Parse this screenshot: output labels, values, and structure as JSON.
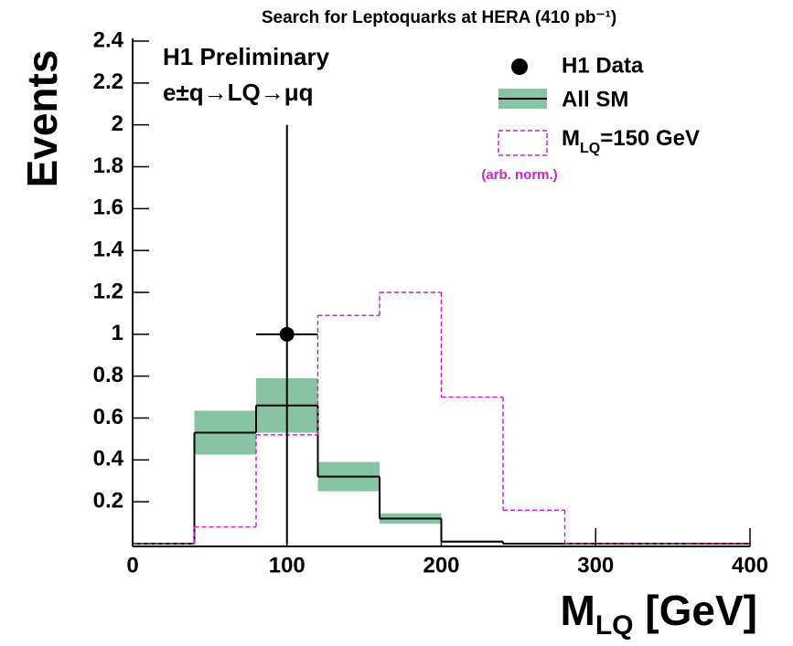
{
  "chart_data": {
    "type": "histogram",
    "title": "Search for Leptoquarks at HERA (410 pb⁻¹)",
    "xlabel": [
      "M",
      "LQ",
      " [GeV]"
    ],
    "ylabel": "Events",
    "annotations": [
      "H1 Preliminary",
      "e±q→LQ→μq"
    ],
    "bins": [
      0,
      40,
      80,
      120,
      160,
      200,
      240,
      280,
      320,
      360,
      400
    ],
    "series": [
      {
        "name": [
          "All SM"
        ],
        "color": "#000000",
        "band_color": "#88c4a4",
        "values": [
          0,
          0.53,
          0.66,
          0.32,
          0.12,
          0.01,
          0,
          0,
          0,
          0
        ],
        "errors": [
          0,
          0.105,
          0.13,
          0.07,
          0.025,
          0.005,
          0,
          0,
          0,
          0
        ]
      },
      {
        "name": [
          "M",
          "LQ",
          "=150 GeV"
        ],
        "note": "(arb. norm.)",
        "color": "#cc22cc",
        "dashed": true,
        "values": [
          0,
          0.08,
          0.52,
          1.09,
          1.2,
          0.7,
          0.16,
          0,
          0,
          0
        ]
      }
    ],
    "points": {
      "name": "H1 Data",
      "color": "#000000",
      "x": [
        100
      ],
      "values": [
        1
      ],
      "xerr": [
        20
      ],
      "yerr": [
        1
      ]
    },
    "xlim": [
      0,
      400
    ],
    "xticks": [
      0,
      100,
      200,
      300,
      400
    ],
    "ylim": [
      0,
      2.4
    ],
    "yticks": [
      0.2,
      0.4,
      0.6,
      0.8,
      1,
      1.2,
      1.4,
      1.6,
      1.8,
      2,
      2.2,
      2.4
    ]
  }
}
